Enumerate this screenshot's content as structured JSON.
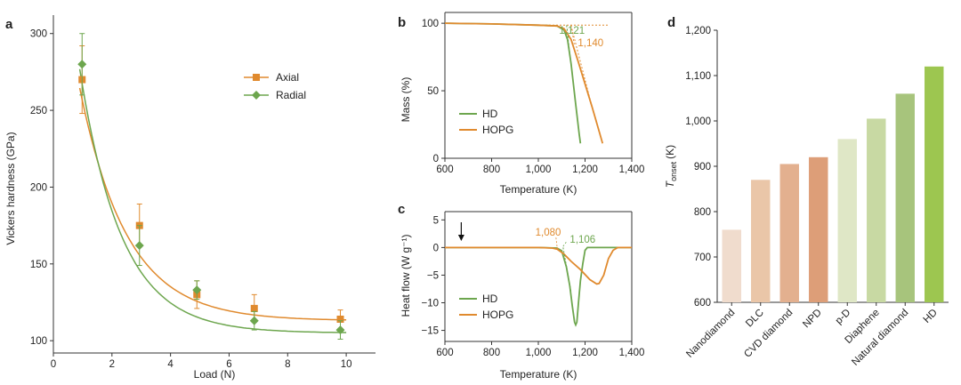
{
  "colors": {
    "axial": "#E08A2E",
    "radial": "#6DA64E",
    "hd": "#6DA64E",
    "hopg": "#E08A2E",
    "ink": "#222222"
  },
  "chart_data": [
    {
      "id": "a",
      "panel_label": "a",
      "type": "scatter",
      "title": "",
      "xlabel": "Load (N)",
      "ylabel": "Vickers hardness (GPa)",
      "xlim": [
        0,
        11
      ],
      "ylim": [
        92,
        312
      ],
      "xticks": [
        0,
        2,
        4,
        6,
        8,
        10
      ],
      "yticks": [
        100,
        150,
        200,
        250,
        300
      ],
      "xtick_labels": [
        "0",
        "2",
        "4",
        "6",
        "8",
        "10"
      ],
      "ytick_labels": [
        "100",
        "150",
        "200",
        "250",
        "300"
      ],
      "legend": [
        "Axial",
        "Radial"
      ],
      "legend_position": "top-right",
      "series": [
        {
          "name": "Axial",
          "marker": "square",
          "x": [
            0.98,
            2.94,
            4.9,
            6.86,
            9.8
          ],
          "y": [
            270,
            175,
            130,
            121,
            114
          ],
          "err": [
            22,
            14,
            9,
            9,
            6
          ]
        },
        {
          "name": "Radial",
          "marker": "diamond",
          "x": [
            0.98,
            2.94,
            4.9,
            6.86,
            9.8
          ],
          "y": [
            280,
            162,
            133,
            113,
            107
          ],
          "err": [
            20,
            13,
            6,
            6,
            6
          ]
        }
      ],
      "fits": [
        {
          "name": "Axial fit",
          "y0": 113,
          "A": 264.7,
          "k": 0.62
        },
        {
          "name": "Radial fit",
          "y0": 105,
          "A": 322.7,
          "k": 0.7
        }
      ]
    },
    {
      "id": "b",
      "panel_label": "b",
      "type": "line",
      "title": "",
      "xlabel": "Temperature (K)",
      "ylabel": "Mass (%)",
      "xlim": [
        600,
        1400
      ],
      "ylim": [
        0,
        108
      ],
      "xticks": [
        600,
        800,
        1000,
        1200,
        1400
      ],
      "yticks": [
        0,
        50,
        100
      ],
      "xtick_labels": [
        "600",
        "800",
        "1,000",
        "1,200",
        "1,400"
      ],
      "ytick_labels": [
        "0",
        "50",
        "100"
      ],
      "legend": [
        "HD",
        "HOPG"
      ],
      "legend_position": "middle-left",
      "series": [
        {
          "name": "HD",
          "x": [
            600,
            800,
            1000,
            1080,
            1110,
            1125,
            1140,
            1160,
            1175,
            1180
          ],
          "y": [
            100,
            99.5,
            98.6,
            98,
            95,
            88,
            70,
            40,
            18,
            11
          ]
        },
        {
          "name": "HOPG",
          "x": [
            600,
            800,
            1000,
            1080,
            1110,
            1140,
            1170,
            1200,
            1230,
            1260,
            1275
          ],
          "y": [
            100,
            99.5,
            98.6,
            98,
            96,
            88,
            72,
            55,
            38,
            20,
            11
          ]
        }
      ],
      "annotations": [
        {
          "text": "1,121",
          "x": 1121,
          "series": "HD"
        },
        {
          "text": "1,140",
          "x": 1140,
          "series": "HOPG"
        }
      ]
    },
    {
      "id": "c",
      "panel_label": "c",
      "type": "line",
      "title": "",
      "xlabel": "Temperature (K)",
      "ylabel": "Heat flow (W g⁻¹)",
      "xlim": [
        600,
        1400
      ],
      "ylim": [
        -17,
        6.5
      ],
      "xticks": [
        600,
        800,
        1000,
        1200,
        1400
      ],
      "yticks": [
        5,
        0,
        -5,
        -10,
        -15
      ],
      "xtick_labels": [
        "600",
        "800",
        "1,000",
        "1,200",
        "1,400"
      ],
      "ytick_labels": [
        "5",
        "0",
        "−5",
        "−10",
        "−15"
      ],
      "legend": [
        "HD",
        "HOPG"
      ],
      "legend_position": "bottom-left",
      "series": [
        {
          "name": "HD",
          "x": [
            600,
            1000,
            1080,
            1100,
            1120,
            1135,
            1145,
            1155,
            1160,
            1165,
            1172,
            1180,
            1190,
            1200,
            1210,
            1400
          ],
          "y": [
            0,
            0,
            -0.1,
            -0.6,
            -3.5,
            -7,
            -10.5,
            -13.5,
            -14,
            -13.5,
            -10,
            -6,
            -3,
            -0.5,
            0,
            0
          ]
        },
        {
          "name": "HOPG",
          "x": [
            600,
            1000,
            1060,
            1080,
            1110,
            1140,
            1180,
            1220,
            1250,
            1260,
            1280,
            1300,
            1320,
            1340,
            1400
          ],
          "y": [
            0,
            0,
            -0.1,
            -0.3,
            -1.2,
            -2.5,
            -4,
            -5.8,
            -6.6,
            -6.5,
            -5,
            -2,
            -0.5,
            0,
            0
          ]
        }
      ],
      "annotations": [
        {
          "text": "1,080",
          "x": 1080,
          "series": "HOPG"
        },
        {
          "text": "1,106",
          "x": 1106,
          "series": "HD"
        }
      ],
      "arrow_at_x": 670
    },
    {
      "id": "d",
      "panel_label": "d",
      "type": "bar",
      "title": "",
      "xlabel": "",
      "ylabel": "T_onset (K)",
      "ylabel_main": "T",
      "ylabel_sub": "onset",
      "ylabel_unit": "(K)",
      "ylim": [
        600,
        1200
      ],
      "yticks": [
        600,
        700,
        800,
        900,
        1000,
        1100,
        1200
      ],
      "ytick_labels": [
        "600",
        "700",
        "800",
        "900",
        "1,000",
        "1,100",
        "1,200"
      ],
      "categories": [
        "Nanodiamond",
        "DLC",
        "CVD diamond",
        "NPD",
        "p-D",
        "Diaphene",
        "Natural diamond",
        "HD"
      ],
      "values": [
        760,
        870,
        905,
        920,
        960,
        1005,
        1060,
        1120
      ],
      "bar_colors": [
        "#F0DCCD",
        "#EAC6A8",
        "#E3B08F",
        "#DD9E78",
        "#DFE7C6",
        "#C8D9A3",
        "#A7C47C",
        "#9DC650"
      ]
    }
  ]
}
